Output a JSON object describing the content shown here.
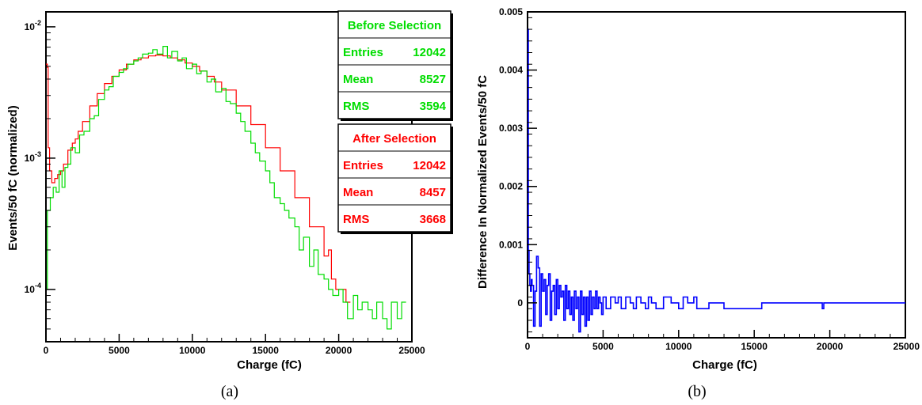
{
  "chart_data": [
    {
      "panel_label": "(a)",
      "type": "histogram",
      "xlabel": "Charge (fC)",
      "ylabel": "Events/50 fC (normalized)",
      "xlim": [
        0,
        25000
      ],
      "ylim": [
        4e-05,
        0.013
      ],
      "y_scale": "log",
      "x_ticks": [
        0,
        5000,
        10000,
        15000,
        20000,
        25000
      ],
      "y_ticks": [
        {
          "value": 0.0001,
          "base": "10",
          "exp": "-4"
        },
        {
          "value": 0.001,
          "base": "10",
          "exp": "-3"
        },
        {
          "value": 0.01,
          "base": "10",
          "exp": "-2"
        }
      ],
      "series": [
        {
          "color": "#ff0000",
          "x": [
            0,
            100,
            150,
            250,
            400,
            600,
            800,
            1000,
            1200,
            1500,
            1800,
            2000,
            2200,
            2500,
            3000,
            3500,
            4000,
            4500,
            5000,
            5500,
            6000,
            6500,
            7000,
            7500,
            8000,
            8500,
            9000,
            9500,
            10000,
            10500,
            11000,
            11500,
            12000,
            13000,
            14000,
            15000,
            16000,
            17000,
            18000,
            19000,
            19300,
            19500,
            19800,
            20500
          ],
          "y": [
            0.0052,
            0.0049,
            0.0012,
            0.0008,
            0.00065,
            0.0007,
            0.00075,
            0.0008,
            0.0009,
            0.00115,
            0.0013,
            0.0014,
            0.0016,
            0.0019,
            0.0025,
            0.0031,
            0.0037,
            0.0042,
            0.0047,
            0.0052,
            0.0056,
            0.0058,
            0.006,
            0.0061,
            0.006,
            0.0058,
            0.0056,
            0.0053,
            0.005,
            0.0046,
            0.0042,
            0.0038,
            0.0033,
            0.0025,
            0.0018,
            0.0012,
            0.0008,
            0.0005,
            0.0003,
            0.00018,
            0.0002,
            0.00012,
            0.0001,
            8e-05
          ]
        },
        {
          "color": "#00dd00",
          "x": [
            0,
            100,
            300,
            500,
            700,
            900,
            1100,
            1300,
            1500,
            1700,
            2000,
            2300,
            2600,
            3000,
            3300,
            3600,
            4000,
            4300,
            4600,
            5000,
            5300,
            5600,
            6000,
            6300,
            6600,
            7000,
            7300,
            7600,
            8000,
            8300,
            8600,
            9000,
            9300,
            9600,
            10000,
            10300,
            10600,
            11000,
            11300,
            11600,
            12000,
            12300,
            12600,
            13000,
            13300,
            13600,
            14000,
            14300,
            14600,
            15000,
            15300,
            15600,
            16000,
            16300,
            16600,
            17000,
            17300,
            17600,
            18000,
            18300,
            18600,
            19000,
            19300,
            19600,
            20000,
            20300,
            20600,
            21000,
            21300,
            21600,
            22000,
            22300,
            22600,
            23000,
            23300,
            23600,
            24000,
            24300
          ],
          "y": [
            0.0001,
            0.0004,
            0.0005,
            0.0006,
            0.00055,
            0.0008,
            0.0006,
            0.00085,
            0.0009,
            0.0012,
            0.0011,
            0.0015,
            0.0016,
            0.002,
            0.0021,
            0.0028,
            0.0033,
            0.0035,
            0.0042,
            0.0045,
            0.0048,
            0.0052,
            0.0055,
            0.0058,
            0.0062,
            0.0063,
            0.0067,
            0.0062,
            0.0071,
            0.0058,
            0.0065,
            0.0055,
            0.0058,
            0.0048,
            0.0052,
            0.0044,
            0.0046,
            0.0038,
            0.004,
            0.0032,
            0.0034,
            0.0027,
            0.0026,
            0.0022,
            0.0019,
            0.0016,
            0.0013,
            0.0011,
            0.00095,
            0.0008,
            0.00065,
            0.0005,
            0.00045,
            0.0004,
            0.00035,
            0.0003,
            0.0002,
            0.00025,
            0.00015,
            0.0002,
            0.00013,
            0.00012,
            0.0001,
            9e-05,
            0.0001,
            8e-05,
            6e-05,
            9e-05,
            7e-05,
            8e-05,
            7e-05,
            6e-05,
            8e-05,
            6e-05,
            5e-05,
            8e-05,
            6e-05,
            8e-05
          ]
        }
      ],
      "stat_boxes": [
        {
          "title": "Before Selection",
          "color": "#00dd00",
          "rows": [
            {
              "label": "Entries",
              "value": "12042"
            },
            {
              "label": "Mean",
              "value": "8527"
            },
            {
              "label": "RMS",
              "value": "3594"
            }
          ]
        },
        {
          "title": "After Selection",
          "color": "#ff0000",
          "rows": [
            {
              "label": "Entries",
              "value": "12042"
            },
            {
              "label": "Mean",
              "value": "8457"
            },
            {
              "label": "RMS",
              "value": "3668"
            }
          ]
        }
      ]
    },
    {
      "panel_label": "(b)",
      "type": "histogram",
      "xlabel": "Charge (fC)",
      "ylabel": "Difference In Normalized Events/50 fC",
      "xlim": [
        0,
        25000
      ],
      "ylim": [
        -0.0006,
        0.005
      ],
      "x_ticks": [
        0,
        5000,
        10000,
        15000,
        20000,
        25000
      ],
      "y_ticks": [
        {
          "value": 0,
          "label": "0"
        },
        {
          "value": 0.001,
          "label": "0.001"
        },
        {
          "value": 0.002,
          "label": "0.002"
        },
        {
          "value": 0.003,
          "label": "0.003"
        },
        {
          "value": 0.004,
          "label": "0.004"
        },
        {
          "value": 0.005,
          "label": "0.005"
        }
      ],
      "series": [
        {
          "color": "#0000ff",
          "x": [
            0,
            50,
            100,
            150,
            200,
            250,
            300,
            400,
            500,
            600,
            700,
            800,
            900,
            1000,
            1100,
            1200,
            1300,
            1400,
            1500,
            1600,
            1700,
            1800,
            1900,
            2000,
            2100,
            2200,
            2300,
            2400,
            2500,
            2600,
            2700,
            2800,
            2900,
            3000,
            3100,
            3200,
            3300,
            3400,
            3500,
            3600,
            3700,
            3800,
            3900,
            4000,
            4100,
            4200,
            4300,
            4400,
            4500,
            4600,
            4700,
            4800,
            4900,
            5000,
            5200,
            5500,
            5800,
            6000,
            6200,
            6500,
            6800,
            7000,
            7200,
            7500,
            7800,
            8000,
            8200,
            8500,
            9000,
            9500,
            10000,
            10300,
            10600,
            11000,
            11200,
            12000,
            13000,
            15500,
            19500,
            19600,
            25000
          ],
          "y": [
            0.0047,
            0.0009,
            0.0005,
            0.0003,
            0.0002,
            0.0004,
            0.0003,
            -0.0004,
            0.0002,
            0.0008,
            0.0006,
            -0.0004,
            0.0005,
            0.0002,
            0.0004,
            -0.0002,
            0.0003,
            0.0005,
            -0.0003,
            0.0002,
            0.0003,
            -0.0002,
            0.0004,
            -0.0001,
            0.0003,
            0.0001,
            0.0002,
            -0.0003,
            0.0003,
            -0.0001,
            0.0002,
            -0.0002,
            0.0001,
            -0.0003,
            0.0002,
            -0.0001,
            0.0001,
            -0.0005,
            0.0002,
            -0.0002,
            0.0001,
            -0.0004,
            0.0001,
            -0.0003,
            0.0002,
            -0.0002,
            0.0001,
            -0.0001,
            0.0002,
            -0.0001,
            0.0001,
            0,
            -0.0002,
            0.0001,
            -0.0001,
            0.0001,
            0,
            0.0001,
            -0.0001,
            0.0001,
            0,
            -0.0001,
            0.0001,
            0,
            -0.0001,
            0.0001,
            0,
            -0.0001,
            0.0001,
            0,
            -0.0001,
            0.0001,
            0,
            0.0001,
            -0.0001,
            0,
            -0.0001,
            0,
            -0.0001,
            0,
            0
          ]
        }
      ]
    }
  ]
}
